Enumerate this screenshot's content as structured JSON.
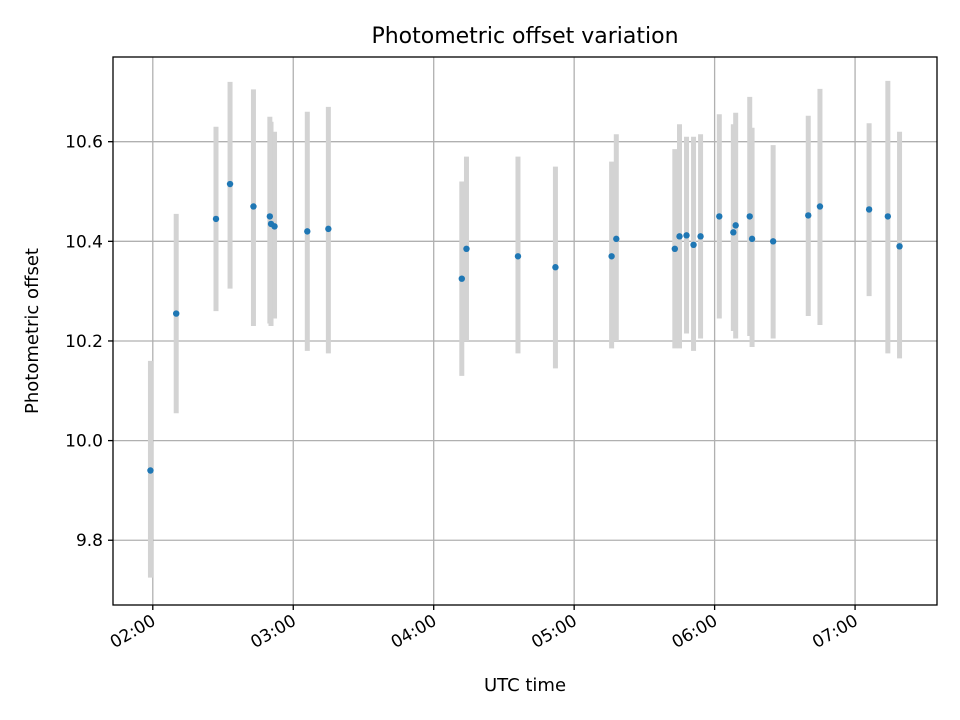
{
  "chart_data": {
    "type": "scatter",
    "title": "Photometric offset variation",
    "xlabel": "UTC time",
    "ylabel": "Photometric offset",
    "x_axis_kind": "time",
    "xlim": [
      "01:43",
      "07:35"
    ],
    "ylim": [
      9.67,
      10.77
    ],
    "x_ticks": [
      "02:00",
      "03:00",
      "04:00",
      "05:00",
      "06:00",
      "07:00"
    ],
    "y_ticks": [
      9.8,
      10.0,
      10.2,
      10.4,
      10.6
    ],
    "y_tick_labels": [
      "9.8",
      "10.0",
      "10.2",
      "10.4",
      "10.6"
    ],
    "grid": true,
    "colors": {
      "point": "#1f77b4",
      "errorbar": "#d3d3d3",
      "grid": "#b0b0b0"
    },
    "points": [
      {
        "x": "01:59",
        "y": 9.94,
        "ylow": 9.725,
        "yhigh": 10.16
      },
      {
        "x": "02:10",
        "y": 10.255,
        "ylow": 10.055,
        "yhigh": 10.455
      },
      {
        "x": "02:27",
        "y": 10.445,
        "ylow": 10.26,
        "yhigh": 10.63
      },
      {
        "x": "02:33",
        "y": 10.515,
        "ylow": 10.305,
        "yhigh": 10.72
      },
      {
        "x": "02:43",
        "y": 10.47,
        "ylow": 10.23,
        "yhigh": 10.705
      },
      {
        "x": "02:50",
        "y": 10.45,
        "ylow": 10.235,
        "yhigh": 10.65
      },
      {
        "x": "02:50.5",
        "y": 10.435,
        "ylow": 10.23,
        "yhigh": 10.64
      },
      {
        "x": "02:52",
        "y": 10.43,
        "ylow": 10.245,
        "yhigh": 10.62
      },
      {
        "x": "03:06",
        "y": 10.42,
        "ylow": 10.18,
        "yhigh": 10.66
      },
      {
        "x": "03:15",
        "y": 10.425,
        "ylow": 10.175,
        "yhigh": 10.67
      },
      {
        "x": "04:12",
        "y": 10.325,
        "ylow": 10.13,
        "yhigh": 10.52
      },
      {
        "x": "04:14",
        "y": 10.385,
        "ylow": 10.2,
        "yhigh": 10.57
      },
      {
        "x": "04:36",
        "y": 10.37,
        "ylow": 10.175,
        "yhigh": 10.57
      },
      {
        "x": "04:52",
        "y": 10.348,
        "ylow": 10.145,
        "yhigh": 10.55
      },
      {
        "x": "05:16",
        "y": 10.37,
        "ylow": 10.185,
        "yhigh": 10.56
      },
      {
        "x": "05:18",
        "y": 10.405,
        "ylow": 10.2,
        "yhigh": 10.615
      },
      {
        "x": "05:43",
        "y": 10.385,
        "ylow": 10.185,
        "yhigh": 10.585
      },
      {
        "x": "05:45",
        "y": 10.41,
        "ylow": 10.185,
        "yhigh": 10.635
      },
      {
        "x": "05:48",
        "y": 10.412,
        "ylow": 10.215,
        "yhigh": 10.61
      },
      {
        "x": "05:51",
        "y": 10.393,
        "ylow": 10.18,
        "yhigh": 10.61
      },
      {
        "x": "05:54",
        "y": 10.41,
        "ylow": 10.205,
        "yhigh": 10.615
      },
      {
        "x": "06:02",
        "y": 10.45,
        "ylow": 10.245,
        "yhigh": 10.655
      },
      {
        "x": "06:08",
        "y": 10.418,
        "ylow": 10.22,
        "yhigh": 10.635
      },
      {
        "x": "06:09",
        "y": 10.432,
        "ylow": 10.205,
        "yhigh": 10.658
      },
      {
        "x": "06:15",
        "y": 10.45,
        "ylow": 10.21,
        "yhigh": 10.69
      },
      {
        "x": "06:16",
        "y": 10.405,
        "ylow": 10.188,
        "yhigh": 10.628
      },
      {
        "x": "06:25",
        "y": 10.4,
        "ylow": 10.205,
        "yhigh": 10.593
      },
      {
        "x": "06:40",
        "y": 10.452,
        "ylow": 10.25,
        "yhigh": 10.652
      },
      {
        "x": "06:45",
        "y": 10.47,
        "ylow": 10.232,
        "yhigh": 10.706
      },
      {
        "x": "07:06",
        "y": 10.464,
        "ylow": 10.29,
        "yhigh": 10.637
      },
      {
        "x": "07:14",
        "y": 10.45,
        "ylow": 10.175,
        "yhigh": 10.722
      },
      {
        "x": "07:19",
        "y": 10.39,
        "ylow": 10.165,
        "yhigh": 10.62
      }
    ]
  }
}
